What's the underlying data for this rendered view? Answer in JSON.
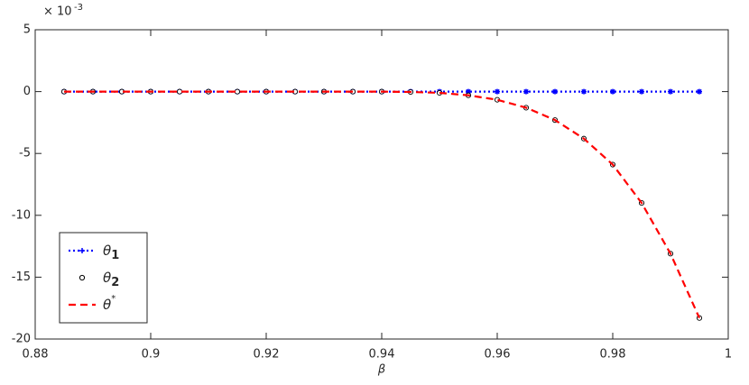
{
  "chart_data": {
    "type": "line",
    "xlabel": "β",
    "y_multiplier": "× 10",
    "y_exponent": "-3",
    "x": [
      0.885,
      0.89,
      0.895,
      0.9,
      0.905,
      0.91,
      0.915,
      0.92,
      0.925,
      0.93,
      0.935,
      0.94,
      0.945,
      0.95,
      0.955,
      0.96,
      0.965,
      0.97,
      0.975,
      0.98,
      0.985,
      0.99,
      0.995
    ],
    "series": [
      {
        "name": "θ1",
        "color": "#0000ff",
        "style": "dotted",
        "marker": "star",
        "values": [
          0,
          0,
          0,
          0,
          0,
          0,
          0,
          0,
          0,
          0,
          0,
          0,
          0,
          0,
          0,
          0,
          0,
          0,
          0,
          0,
          0,
          0,
          0
        ]
      },
      {
        "name": "θ2",
        "color": "#000000",
        "style": "none",
        "marker": "circle",
        "values": [
          0,
          0,
          0,
          0,
          0,
          0,
          0,
          0,
          0,
          0,
          0,
          0,
          -0.03,
          -0.1,
          -0.3,
          -0.66,
          -1.3,
          -2.3,
          -3.8,
          -5.9,
          -9.0,
          -13.1,
          -18.3
        ]
      },
      {
        "name": "θ*",
        "color": "#ff0000",
        "style": "dashed",
        "marker": "none",
        "values": [
          0,
          0,
          0,
          0,
          0,
          0,
          0,
          0,
          0,
          0,
          0,
          0,
          -0.03,
          -0.1,
          -0.3,
          -0.66,
          -1.3,
          -2.3,
          -3.8,
          -5.9,
          -9.0,
          -13.1,
          -18.3
        ]
      }
    ],
    "xlim": [
      0.88,
      1
    ],
    "xticks": [
      0.88,
      0.9,
      0.92,
      0.94,
      0.96,
      0.98,
      1
    ],
    "ylim": [
      -20,
      5
    ],
    "yticks": [
      -20,
      -15,
      -10,
      -5,
      0,
      5
    ],
    "legend": "lower-left"
  }
}
